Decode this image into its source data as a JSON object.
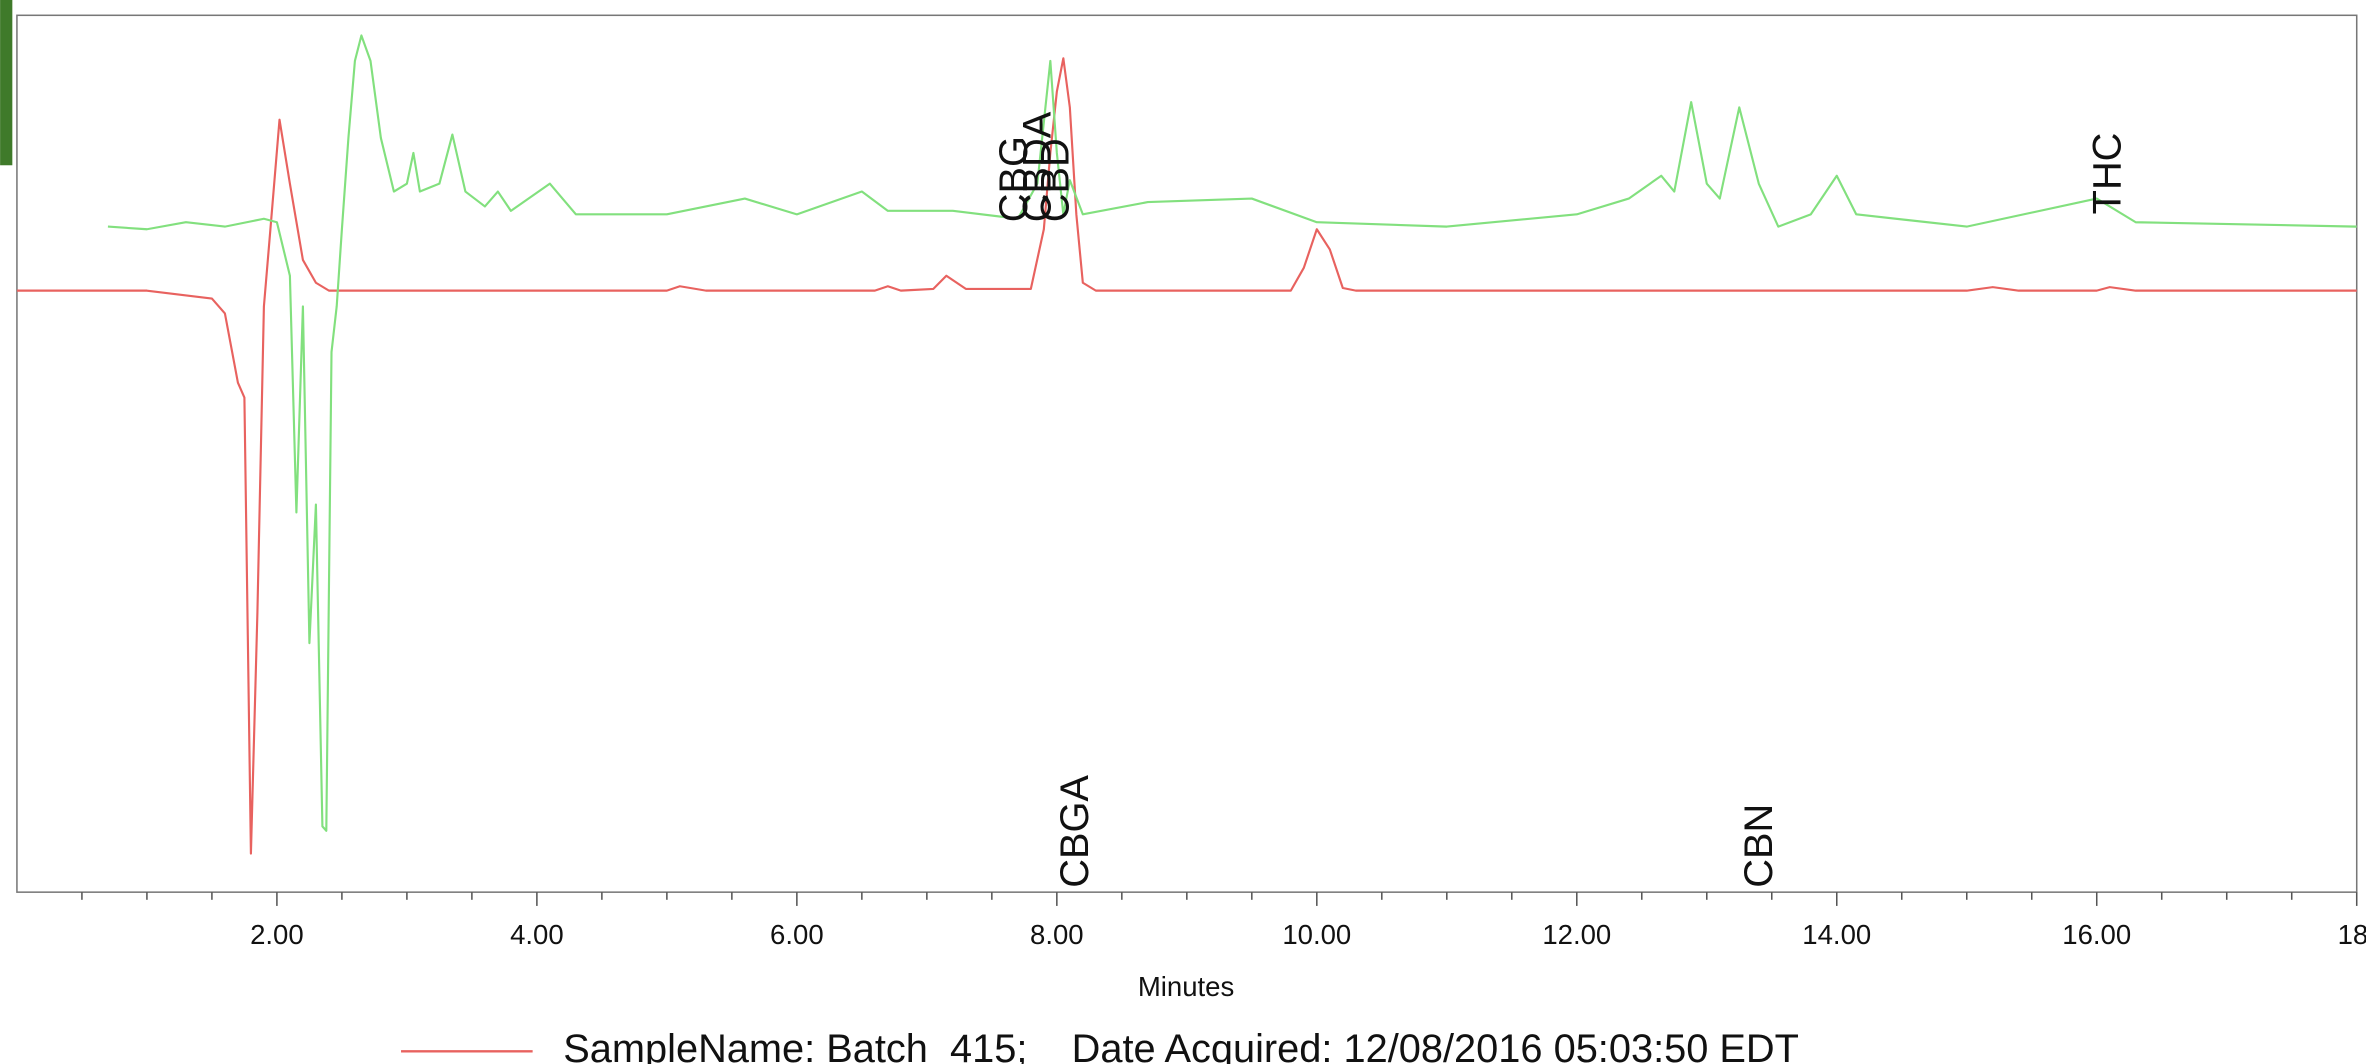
{
  "chart_data": {
    "type": "line",
    "xlabel": "Minutes",
    "xlim": [
      0,
      18
    ],
    "xticks": [
      {
        "value": 2,
        "label": "2.00"
      },
      {
        "value": 4,
        "label": "4.00"
      },
      {
        "value": 6,
        "label": "6.00"
      },
      {
        "value": 8,
        "label": "8.00"
      },
      {
        "value": 10,
        "label": "10.00"
      },
      {
        "value": 12,
        "label": "12.00"
      },
      {
        "value": 14,
        "label": "14.00"
      },
      {
        "value": 16,
        "label": "16.00"
      },
      {
        "value": 18,
        "label": "18."
      }
    ],
    "xminorticks": [
      0.5,
      1,
      1.5,
      2.5,
      3,
      3.5,
      4.5,
      5,
      5.5,
      6.5,
      7,
      7.5,
      8.5,
      9,
      9.5,
      10.5,
      11,
      11.5,
      12.5,
      13,
      13.5,
      14.5,
      15,
      15.5,
      16.5,
      17,
      17.5
    ],
    "ylim": [
      0,
      100
    ],
    "series": [
      {
        "name": "SampleName: Batch  415;    Date Acquired: 12/08/2016 05:03:50 EDT",
        "color": "#e8625f",
        "x": [
          0,
          1.0,
          1.5,
          1.6,
          1.7,
          1.75,
          1.8,
          1.85,
          1.9,
          1.95,
          2.02,
          2.1,
          2.2,
          2.3,
          2.4,
          5.0,
          5.1,
          5.3,
          6.6,
          6.7,
          6.8,
          7.05,
          7.15,
          7.3,
          7.8,
          7.9,
          7.95,
          8.0,
          8.05,
          8.1,
          8.15,
          8.2,
          8.3,
          9.8,
          9.9,
          10.0,
          10.1,
          10.2,
          10.3,
          15.0,
          15.2,
          15.4,
          16.0,
          16.1,
          16.3,
          18
        ],
        "values": [
          68.6,
          68.6,
          67.7,
          66.0,
          58.1,
          56.4,
          4.4,
          31.9,
          66.8,
          75.6,
          88.1,
          80.8,
          72.1,
          69.5,
          68.6,
          68.6,
          69.1,
          68.6,
          68.6,
          69.1,
          68.6,
          68.8,
          70.3,
          68.8,
          68.8,
          75.6,
          84.3,
          91.3,
          95.1,
          89.5,
          77.3,
          69.5,
          68.6,
          68.6,
          71.2,
          75.6,
          73.3,
          68.9,
          68.6,
          68.6,
          69.0,
          68.6,
          68.6,
          69.0,
          68.6,
          68.6
        ]
      },
      {
        "color": "#82e07e",
        "x": [
          0.7,
          1.0,
          1.3,
          1.6,
          1.9,
          2.0,
          2.1,
          2.15,
          2.2,
          2.25,
          2.3,
          2.35,
          2.38,
          2.42,
          2.46,
          2.5,
          2.55,
          2.6,
          2.65,
          2.72,
          2.8,
          2.9,
          3.0,
          3.05,
          3.1,
          3.25,
          3.35,
          3.45,
          3.6,
          3.7,
          3.8,
          4.1,
          4.3,
          5.0,
          5.6,
          6.0,
          6.5,
          6.7,
          7.2,
          7.7,
          7.85,
          7.95,
          8.0,
          8.05,
          8.1,
          8.2,
          8.7,
          9.5,
          10.0,
          11.0,
          12.0,
          12.4,
          12.65,
          12.75,
          12.88,
          13.0,
          13.1,
          13.25,
          13.4,
          13.55,
          13.8,
          14.0,
          14.15,
          15.0,
          16.0,
          16.3,
          18
        ],
        "values": [
          75.9,
          75.6,
          76.4,
          75.9,
          76.8,
          76.4,
          70.3,
          43.3,
          66.8,
          28.4,
          44.2,
          7.5,
          7.0,
          61.6,
          66.8,
          75.6,
          86.0,
          94.8,
          97.7,
          94.8,
          86.0,
          79.9,
          80.8,
          84.3,
          79.9,
          80.8,
          86.4,
          79.9,
          78.2,
          79.9,
          77.7,
          80.8,
          77.3,
          77.3,
          79.1,
          77.3,
          79.9,
          77.7,
          77.7,
          76.8,
          80.8,
          94.8,
          84.3,
          77.3,
          81.2,
          77.3,
          78.7,
          79.1,
          76.4,
          75.9,
          77.3,
          79.1,
          81.7,
          79.9,
          90.1,
          80.8,
          79.1,
          89.5,
          80.8,
          75.9,
          77.3,
          81.7,
          77.3,
          75.9,
          79.1,
          76.4,
          75.9
        ]
      }
    ],
    "annotations": [
      {
        "text": "CBG",
        "x": 7.69,
        "y": 76.4
      },
      {
        "text": "CBDA",
        "x": 7.87,
        "y": 76.4
      },
      {
        "text": "CBD",
        "x": 8.01,
        "y": 76.4
      },
      {
        "text": "THC",
        "x": 16.1,
        "y": 77.3
      },
      {
        "text": "CBGA",
        "x": 8.16,
        "y": 0.5
      },
      {
        "text": "CBN",
        "x": 13.42,
        "y": 0.5
      }
    ]
  }
}
